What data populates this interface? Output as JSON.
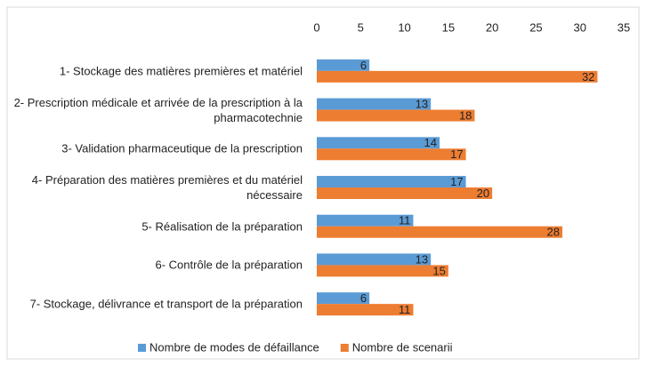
{
  "chart_data": {
    "type": "bar",
    "orientation": "horizontal",
    "categories": [
      "1- Stockage des matières premières et matériel",
      "2- Prescription médicale et arrivée de la prescription à la pharmacotechnie",
      "3- Validation pharmaceutique de la prescription",
      "4- Préparation des matières premières et du matériel nécessaire",
      "5- Réalisation de la préparation",
      "6- Contrôle de la préparation",
      "7- Stockage, délivrance et transport de la préparation"
    ],
    "series": [
      {
        "name": "Nombre de modes de défaillance",
        "color": "#5b9bd5",
        "values": [
          6,
          13,
          14,
          17,
          11,
          13,
          6
        ]
      },
      {
        "name": "Nombre de scenarii",
        "color": "#ed7d31",
        "values": [
          32,
          18,
          17,
          20,
          28,
          15,
          11
        ]
      }
    ],
    "xlim": [
      0,
      35
    ],
    "xticks": [
      0,
      5,
      10,
      15,
      20,
      25,
      30,
      35
    ],
    "grid": false,
    "legend": "bottom"
  }
}
